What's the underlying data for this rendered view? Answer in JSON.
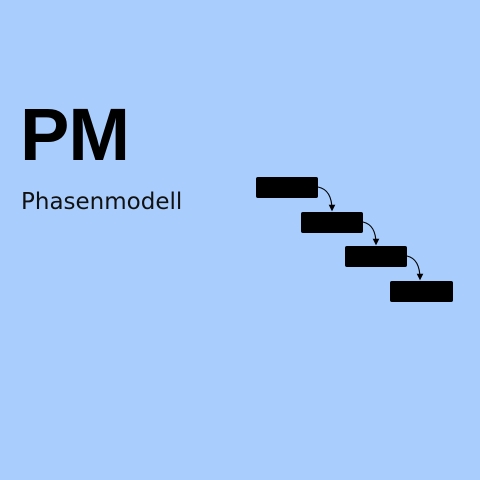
{
  "header": {
    "abbreviation": "PM",
    "subtitle": "Phasenmodell"
  },
  "diagram": {
    "type": "waterfall-steps",
    "phase_count": 4,
    "icons": [
      "phase-block",
      "arrow-right-down-icon"
    ],
    "colors": {
      "background": "#a9cdfd",
      "block_fill": "#000000",
      "arrow_stroke": "#000000",
      "text": "#000000"
    }
  }
}
